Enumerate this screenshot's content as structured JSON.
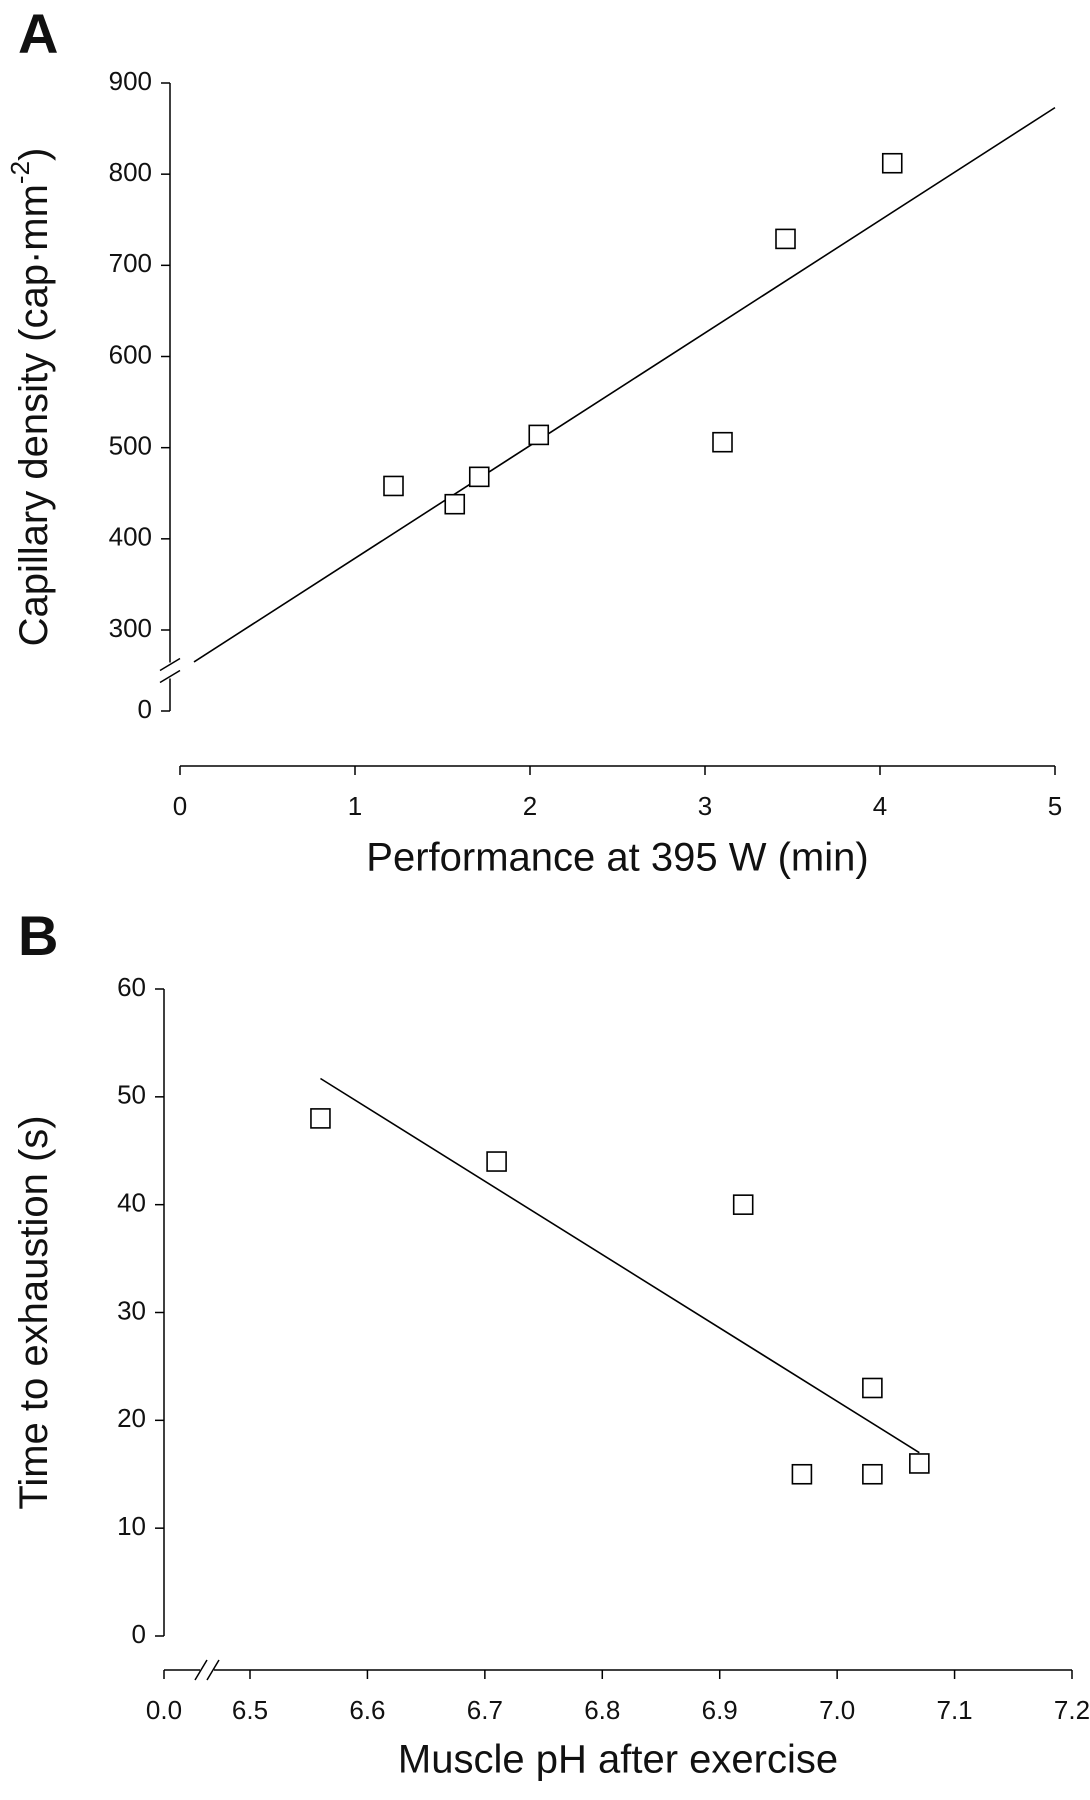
{
  "chart_data": [
    {
      "type": "scatter",
      "panel_label": "A",
      "xlabel": "Performance at 395 W (min)",
      "ylabel": {
        "text": "Capillary density (cap·mm",
        "sup": "-2",
        "after": ")"
      },
      "xlim": [
        0,
        5
      ],
      "xticks": [
        0,
        1,
        2,
        3,
        4,
        5
      ],
      "ylim": [
        0,
        900
      ],
      "ybreak": [
        0,
        300
      ],
      "yticks": [
        0,
        300,
        400,
        500,
        600,
        700,
        800,
        900
      ],
      "marker_color": "#000000",
      "points": {
        "x": [
          1.22,
          1.57,
          1.71,
          2.05,
          3.1,
          3.46,
          4.07
        ],
        "y": [
          458,
          438,
          468,
          514,
          506,
          729,
          812
        ]
      },
      "fit_line": {
        "x": [
          0.08,
          5
        ],
        "y": [
          265,
          873
        ]
      }
    },
    {
      "type": "scatter",
      "panel_label": "B",
      "xlabel": "Muscle pH after exercise",
      "ylabel": {
        "text": "Time to exhaustion (s)"
      },
      "xlim": [
        0,
        7.2
      ],
      "xbreak": [
        0,
        6.5
      ],
      "xticks": [
        {
          "value": 0,
          "label": "0.0"
        },
        6.5,
        6.6,
        6.7,
        6.8,
        6.9,
        {
          "value": 7,
          "label": "7.0"
        },
        7.1,
        7.2
      ],
      "ylim": [
        0,
        60
      ],
      "yticks": [
        0,
        10,
        20,
        30,
        40,
        50,
        60
      ],
      "marker_color": "#000000",
      "points": {
        "x": [
          6.56,
          6.71,
          6.92,
          6.97,
          7.03,
          7.03,
          7.07
        ],
        "y": [
          48,
          44,
          40,
          15,
          23,
          15,
          16
        ]
      },
      "fit_line": {
        "x": [
          6.56,
          7.07
        ],
        "y": [
          51.7,
          17
        ]
      }
    }
  ]
}
